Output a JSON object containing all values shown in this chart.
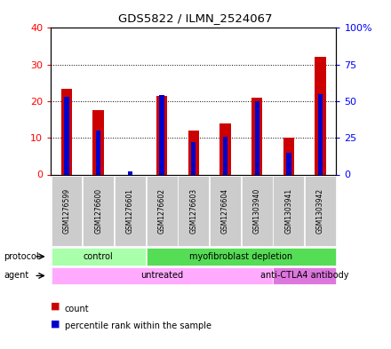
{
  "title": "GDS5822 / ILMN_2524067",
  "samples": [
    "GSM1276599",
    "GSM1276600",
    "GSM1276601",
    "GSM1276602",
    "GSM1276603",
    "GSM1276604",
    "GSM1303940",
    "GSM1303941",
    "GSM1303942"
  ],
  "counts": [
    23.5,
    17.5,
    0,
    21.5,
    12.0,
    14.0,
    21.0,
    10.0,
    32.0
  ],
  "percentiles": [
    53,
    30,
    2,
    54,
    22,
    26,
    50,
    15,
    55
  ],
  "left_ylim": [
    0,
    40
  ],
  "right_ylim": [
    0,
    100
  ],
  "left_yticks": [
    0,
    10,
    20,
    30,
    40
  ],
  "right_yticks": [
    0,
    25,
    50,
    75,
    100
  ],
  "right_yticklabels": [
    "0",
    "25",
    "50",
    "75",
    "100%"
  ],
  "bar_color": "#cc0000",
  "percentile_color": "#0000cc",
  "protocol_groups": [
    {
      "label": "control",
      "start": 0,
      "end": 3,
      "color": "#aaffaa"
    },
    {
      "label": "myofibroblast depletion",
      "start": 3,
      "end": 9,
      "color": "#55dd55"
    }
  ],
  "agent_groups": [
    {
      "label": "untreated",
      "start": 0,
      "end": 7,
      "color": "#ffaaff"
    },
    {
      "label": "anti-CTLA4 antibody",
      "start": 7,
      "end": 9,
      "color": "#dd77dd"
    }
  ],
  "bg_color": "#cccccc",
  "legend_count_color": "#cc0000",
  "legend_percentile_color": "#0000cc"
}
